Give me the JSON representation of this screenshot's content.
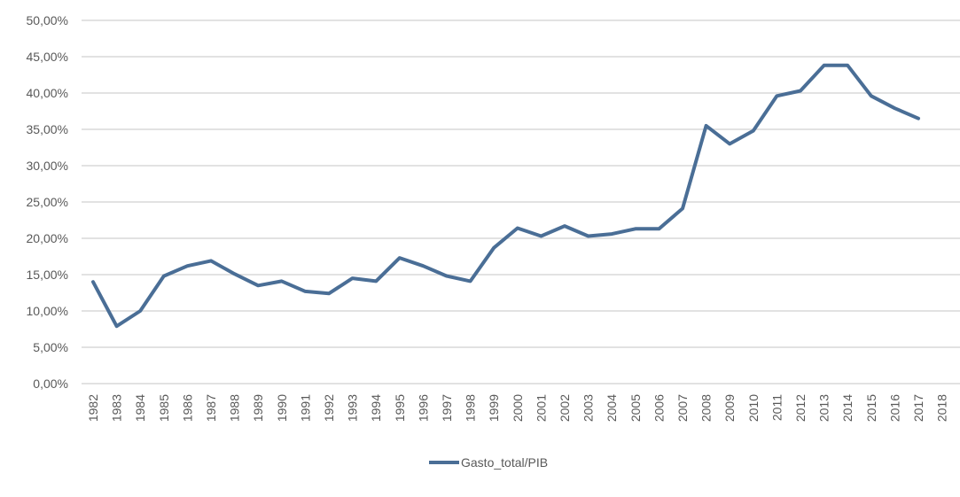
{
  "chart_data": {
    "type": "line",
    "title": "",
    "xlabel": "",
    "ylabel": "",
    "x": [
      "1982",
      "1983",
      "1984",
      "1985",
      "1986",
      "1987",
      "1988",
      "1989",
      "1990",
      "1991",
      "1992",
      "1993",
      "1994",
      "1995",
      "1996",
      "1997",
      "1998",
      "1999",
      "2000",
      "2001",
      "2002",
      "2003",
      "2004",
      "2005",
      "2006",
      "2007",
      "2008",
      "2009",
      "2010",
      "2011",
      "2012",
      "2013",
      "2014",
      "2015",
      "2016",
      "2017",
      "2018"
    ],
    "series": [
      {
        "name": "Gasto_total/PIB",
        "color": "#4a6e96",
        "values": [
          14.0,
          7.9,
          10.0,
          14.8,
          16.2,
          16.9,
          15.1,
          13.5,
          14.1,
          12.7,
          12.4,
          14.5,
          14.1,
          17.3,
          16.2,
          14.8,
          14.1,
          18.7,
          21.4,
          20.3,
          21.7,
          20.3,
          20.6,
          21.3,
          21.3,
          24.1,
          35.5,
          33.0,
          34.8,
          39.6,
          40.3,
          43.8,
          43.8,
          39.6,
          37.9,
          36.5,
          null
        ]
      }
    ],
    "yticks": [
      "0,00%",
      "5,00%",
      "10,00%",
      "15,00%",
      "20,00%",
      "25,00%",
      "30,00%",
      "35,00%",
      "40,00%",
      "45,00%",
      "50,00%"
    ],
    "ylim": [
      0,
      50
    ],
    "grid": true,
    "legend_position": "bottom"
  }
}
